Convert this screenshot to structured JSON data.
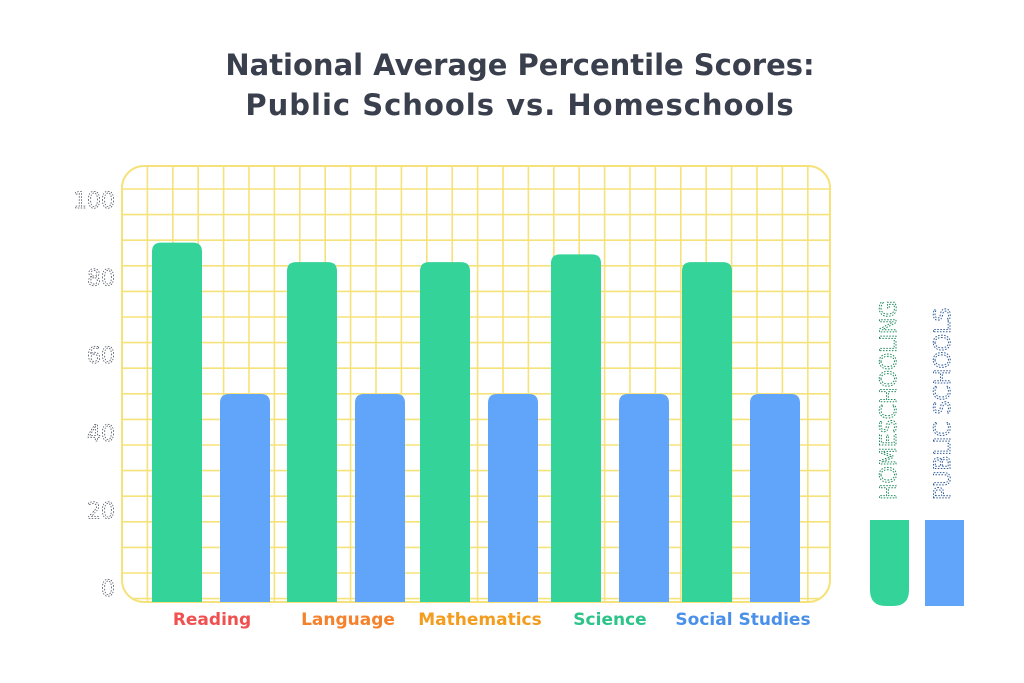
{
  "title_line1": "National Average Percentile Scores:",
  "title_line2": "Public  Schools  vs.  Homeschools",
  "chart_data": {
    "type": "bar",
    "title": "National Average Percentile Scores: Public Schools vs. Homeschools",
    "categories": [
      "Reading",
      "Language",
      "Mathematics",
      "Science",
      "Social Studies"
    ],
    "category_colors": [
      "#f0504f",
      "#f5822b",
      "#f39c1e",
      "#2cc48a",
      "#4a90e8"
    ],
    "series": [
      {
        "name": "HOMESCHOOLING",
        "values": [
          89,
          84,
          84,
          86,
          84
        ],
        "color": "#34d399"
      },
      {
        "name": "PUBLIC SCHOOLS",
        "values": [
          50,
          50,
          50,
          50,
          50
        ],
        "color": "#60a5fa"
      }
    ],
    "yticks": [
      0,
      20,
      40,
      60,
      80,
      100
    ],
    "ylim": [
      0,
      100
    ],
    "grid": true,
    "grid_color": "#f5e27a",
    "legend_position": "right"
  }
}
